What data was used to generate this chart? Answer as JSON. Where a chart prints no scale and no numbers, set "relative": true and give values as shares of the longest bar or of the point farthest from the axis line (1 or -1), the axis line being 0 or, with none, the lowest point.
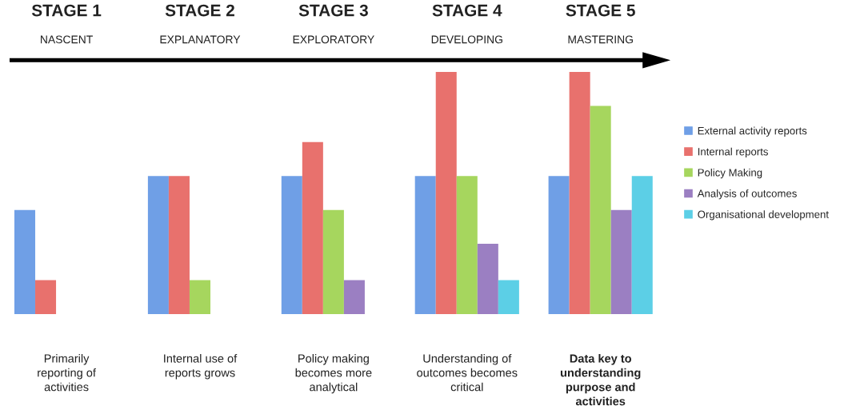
{
  "chart_data": {
    "type": "bar",
    "relative": true,
    "legend": "right",
    "categories": [
      "STAGE 1",
      "STAGE 2",
      "STAGE 3",
      "STAGE 4",
      "STAGE 5"
    ],
    "series": [
      {
        "name": "External activity reports",
        "color": "#6f9fe6",
        "values": [
          0.43,
          0.57,
          0.57,
          0.57,
          0.57
        ]
      },
      {
        "name": "Internal reports",
        "color": "#e8716d",
        "values": [
          0.14,
          0.57,
          0.71,
          1,
          1
        ]
      },
      {
        "name": "Policy Making",
        "color": "#a6d65e",
        "values": [
          null,
          0.14,
          0.43,
          0.57,
          0.86
        ]
      },
      {
        "name": "Analysis of outcomes",
        "color": "#9b7fc2",
        "values": [
          null,
          null,
          0.14,
          0.29,
          0.43
        ]
      },
      {
        "name": "Organisational development",
        "color": "#5ccfe6",
        "values": [
          null,
          null,
          null,
          0.14,
          0.57
        ]
      }
    ],
    "annotations": [
      "NASCENT",
      "EXPLANATORY",
      "EXPLORATORY",
      "DEVELOPING",
      "MASTERING",
      "Primarily\nreporting of\nactivities",
      "Internal use of\nreports grows",
      "Policy making\nbecomes more\nanalytical",
      "Understanding of\noutcomes becomes\ncritical",
      "Data key to\nunderstanding\npurpose and\nactivities"
    ]
  }
}
